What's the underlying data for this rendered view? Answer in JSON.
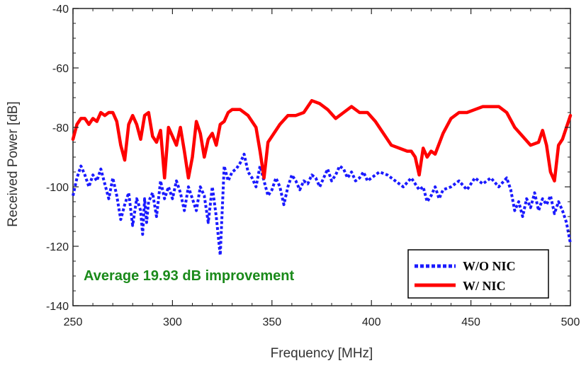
{
  "chart_data": {
    "type": "line",
    "title": "",
    "xlabel": "Frequency [MHz]",
    "ylabel": "Received Power [dB]",
    "xlim": [
      250,
      500
    ],
    "ylim": [
      -140,
      -40
    ],
    "xticks": [
      250,
      300,
      350,
      400,
      450,
      500
    ],
    "yticks": [
      -40,
      -60,
      -80,
      -100,
      -120,
      -140
    ],
    "grid": false,
    "legend_position": "bottom-right",
    "annotation": {
      "text": "Average 19.93 dB improvement",
      "color": "#1a8a1a"
    },
    "series": [
      {
        "name": "W/O NIC",
        "color": "#1a1aff",
        "style": "dotted",
        "x": [
          250,
          252,
          254,
          256,
          258,
          260,
          262,
          264,
          266,
          268,
          270,
          272,
          274,
          276,
          278,
          280,
          282,
          284,
          285,
          286,
          287,
          288,
          290,
          292,
          294,
          296,
          298,
          300,
          302,
          304,
          306,
          308,
          310,
          312,
          314,
          316,
          318,
          320,
          322,
          324,
          326,
          328,
          330,
          332,
          334,
          336,
          338,
          340,
          342,
          344,
          346,
          348,
          350,
          352,
          354,
          356,
          358,
          360,
          362,
          364,
          366,
          368,
          370,
          372,
          374,
          376,
          378,
          380,
          382,
          384,
          386,
          388,
          390,
          392,
          394,
          396,
          398,
          400,
          404,
          408,
          412,
          416,
          420,
          424,
          426,
          428,
          430,
          432,
          434,
          436,
          440,
          444,
          448,
          452,
          456,
          460,
          464,
          468,
          470,
          472,
          474,
          476,
          478,
          480,
          482,
          484,
          486,
          488,
          490,
          492,
          494,
          496,
          498,
          500
        ],
        "y": [
          -103,
          -97,
          -93,
          -96,
          -100,
          -96,
          -98,
          -94,
          -99,
          -104,
          -97,
          -103,
          -111,
          -106,
          -102,
          -113,
          -104,
          -108,
          -116,
          -104,
          -112,
          -105,
          -102,
          -110,
          -98,
          -104,
          -100,
          -104,
          -98,
          -102,
          -108,
          -100,
          -104,
          -108,
          -100,
          -103,
          -112,
          -100,
          -110,
          -123,
          -93,
          -98,
          -95,
          -94,
          -92,
          -89,
          -95,
          -97,
          -100,
          -93,
          -98,
          -103,
          -101,
          -97,
          -100,
          -106,
          -100,
          -96,
          -98,
          -101,
          -98,
          -99,
          -96,
          -97,
          -100,
          -97,
          -94,
          -98,
          -96,
          -93,
          -94,
          -97,
          -95,
          -98,
          -97,
          -95,
          -98,
          -97,
          -95,
          -96,
          -98,
          -100,
          -97,
          -101,
          -100,
          -105,
          -103,
          -100,
          -104,
          -101,
          -100,
          -98,
          -101,
          -97,
          -99,
          -97,
          -100,
          -97,
          -101,
          -108,
          -105,
          -110,
          -104,
          -107,
          -102,
          -108,
          -104,
          -106,
          -103,
          -109,
          -105,
          -108,
          -112,
          -119
        ]
      },
      {
        "name": "W/ NIC",
        "color": "#ff0000",
        "style": "solid",
        "x": [
          250,
          252,
          254,
          256,
          258,
          260,
          262,
          264,
          266,
          268,
          270,
          272,
          274,
          276,
          278,
          280,
          282,
          284,
          286,
          288,
          290,
          292,
          294,
          296,
          298,
          300,
          302,
          304,
          306,
          308,
          310,
          312,
          314,
          316,
          318,
          320,
          322,
          324,
          326,
          328,
          330,
          334,
          338,
          342,
          344,
          346,
          348,
          350,
          354,
          358,
          362,
          366,
          370,
          374,
          378,
          382,
          386,
          390,
          394,
          398,
          402,
          406,
          410,
          414,
          418,
          420,
          422,
          424,
          426,
          428,
          430,
          432,
          436,
          440,
          444,
          448,
          452,
          456,
          460,
          464,
          468,
          472,
          476,
          480,
          484,
          486,
          488,
          490,
          492,
          494,
          496,
          498,
          500
        ],
        "y": [
          -84,
          -79,
          -77,
          -77,
          -79,
          -77,
          -78,
          -75,
          -76,
          -75,
          -75,
          -78,
          -86,
          -91,
          -79,
          -76,
          -79,
          -84,
          -76,
          -75,
          -83,
          -85,
          -81,
          -97,
          -80,
          -83,
          -86,
          -80,
          -88,
          -97,
          -90,
          -78,
          -82,
          -90,
          -84,
          -82,
          -86,
          -79,
          -78,
          -75,
          -74,
          -74,
          -76,
          -80,
          -88,
          -97,
          -85,
          -83,
          -79,
          -76,
          -76,
          -75,
          -71,
          -72,
          -74,
          -77,
          -75,
          -73,
          -75,
          -75,
          -78,
          -82,
          -86,
          -87,
          -88,
          -88,
          -90,
          -96,
          -87,
          -90,
          -88,
          -89,
          -82,
          -77,
          -75,
          -75,
          -74,
          -73,
          -73,
          -73,
          -75,
          -80,
          -83,
          -86,
          -85,
          -81,
          -86,
          -95,
          -98,
          -86,
          -84,
          -80,
          -76
        ]
      }
    ]
  }
}
